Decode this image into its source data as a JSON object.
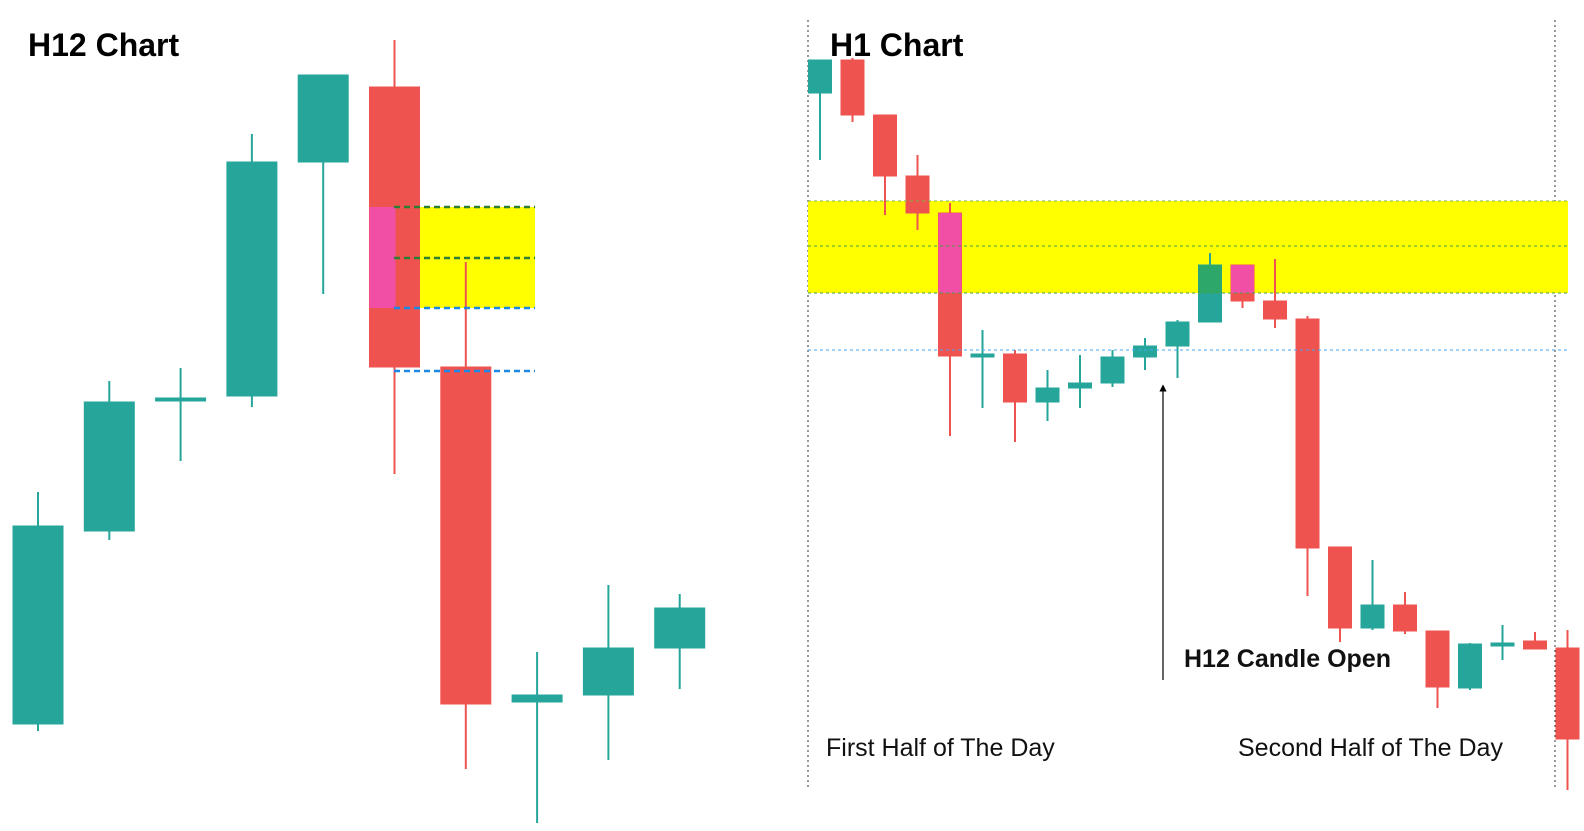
{
  "chart_data": [
    {
      "type": "candlestick",
      "title": "H12 Chart",
      "open": [
        107,
        300,
        432,
        435,
        669,
        744,
        464,
        129,
        136,
        183
      ],
      "high": [
        339,
        450,
        463,
        697,
        756,
        791,
        569,
        179,
        246,
        237
      ],
      "low": [
        100,
        291,
        370,
        424,
        537,
        357,
        62,
        8,
        71,
        142
      ],
      "close": [
        305,
        429,
        433,
        669,
        756,
        464,
        127,
        136,
        183,
        223
      ],
      "ylim": [
        0,
        831
      ],
      "up_color": "#26a69a",
      "down_color": "#ef5350",
      "zone": [
        523,
        624
      ],
      "zone_color": "#ffff00",
      "highlight": [
        5
      ],
      "highlight_color": "#f04fa5",
      "levels": [
        624,
        573,
        523,
        460
      ],
      "level_colors": [
        "#2e7d32",
        "#2e7d32",
        "#1e88e5",
        "#1e88e5"
      ]
    },
    {
      "type": "candlestick",
      "title": "H1 Chart",
      "open": [
        738,
        771,
        716,
        655,
        618,
        475,
        477,
        429,
        443,
        448,
        474,
        485,
        509,
        566,
        530,
        512,
        284,
        203,
        226,
        200,
        143,
        186,
        190,
        183
      ],
      "high": [
        771,
        773,
        716,
        676,
        628,
        501,
        481,
        461,
        476,
        481,
        493,
        511,
        578,
        566,
        572,
        515,
        284,
        271,
        239,
        200,
        188,
        206,
        199,
        201
      ],
      "low": [
        671,
        709,
        616,
        601,
        395,
        423,
        389,
        410,
        423,
        444,
        461,
        453,
        509,
        523,
        503,
        235,
        189,
        201,
        197,
        123,
        141,
        171,
        182,
        41
      ],
      "close": [
        771,
        716,
        655,
        618,
        475,
        477,
        429,
        443,
        448,
        474,
        485,
        509,
        566,
        530,
        512,
        283,
        203,
        226,
        200,
        144,
        187,
        188,
        182,
        92
      ],
      "ylim": [
        0,
        831
      ],
      "up_color": "#26a69a",
      "down_color": "#ef5350",
      "zone": [
        538,
        630
      ],
      "zone_color": "#ffff00",
      "highlight": [
        4,
        12,
        13
      ],
      "highlight_colors": [
        "#f04fa5",
        "#2ea86a",
        "#f04fa5"
      ],
      "levels": [
        630,
        585,
        538,
        481
      ],
      "level_colors": [
        "#7cb342",
        "#43a047",
        "#43a047",
        "#42a5f5"
      ],
      "annotations": [
        "H12 Candle Open",
        "First Half of The Day",
        "Second Half of The Day"
      ]
    }
  ]
}
